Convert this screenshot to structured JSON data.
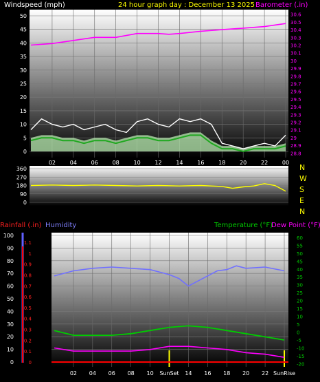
{
  "header": {
    "left_label": "Windspeed (mph)",
    "title": "24 hour graph day : December 13 2025",
    "right_label": "Barometer (.in)"
  },
  "colors": {
    "background": "#000000",
    "wind_gust": "#ffffff",
    "wind_avg": "#1fa81f",
    "wind_band": "#b8ecb0",
    "barometer": "#ff00ff",
    "direction": "#ffff00",
    "rain": "#ff0000",
    "humidity": "#7070ff",
    "temperature": "#00cc00",
    "dewpoint": "#ff00ff",
    "sun_marker": "#ffff00"
  },
  "x_ticks": [
    "02",
    "04",
    "06",
    "08",
    "10",
    "12",
    "14",
    "16",
    "18",
    "20",
    "22",
    "00"
  ],
  "bottom_x_ticks": [
    "02",
    "04",
    "06",
    "08",
    "10",
    "SunSet",
    "14",
    "16",
    "18",
    "20",
    "22",
    "SunRise"
  ],
  "direction_letters": [
    "N",
    "W",
    "S",
    "E",
    "N"
  ],
  "bottom_labels": {
    "rainfall": "Rainfall (.in)",
    "humidity": "Humidity",
    "temperature": "Temperature (°F)",
    "dewpoint": "Dew Point (°F)"
  },
  "chart_data": [
    {
      "type": "line",
      "title": "24 hour graph day : December 13 2025",
      "x_hours": [
        0,
        24
      ],
      "y_left_label": "Windspeed (mph)",
      "y_left_ticks": [
        "0",
        "5",
        "10",
        "15",
        "20",
        "25",
        "30",
        "35",
        "40",
        "45",
        "50"
      ],
      "y_left_lim": [
        0,
        50
      ],
      "y_right_label": "Barometer (.in)",
      "y_right_ticks": [
        "28.8",
        "28.9",
        "29",
        "29.1",
        "29.2",
        "29.3",
        "29.4",
        "29.5",
        "29.6",
        "29.7",
        "29.8",
        "29.9",
        "30",
        "30.1",
        "30.2",
        "30.3",
        "30.4",
        "30.5",
        "30.6"
      ],
      "y_right_lim": [
        28.74,
        30.66
      ],
      "series": [
        {
          "name": "Barometer (.in)",
          "axis": "right",
          "x": [
            0,
            2,
            4,
            6,
            8,
            10,
            12,
            13,
            14,
            16,
            18,
            20,
            22,
            24
          ],
          "values": [
            30.2,
            30.22,
            30.26,
            30.3,
            30.3,
            30.35,
            30.35,
            30.34,
            30.35,
            30.38,
            30.4,
            30.42,
            30.44,
            30.48
          ]
        },
        {
          "name": "Wind gust",
          "axis": "left",
          "x": [
            0,
            1,
            2,
            3,
            4,
            5,
            6,
            7,
            8,
            9,
            10,
            11,
            12,
            13,
            14,
            15,
            16,
            17,
            18,
            19,
            20,
            21,
            22,
            23,
            24
          ],
          "values": [
            8,
            12,
            10,
            9,
            10,
            8,
            9,
            10,
            8,
            7,
            11,
            12,
            10,
            9,
            12,
            11,
            12,
            10,
            3,
            2,
            1,
            2,
            3,
            2,
            6
          ]
        },
        {
          "name": "Wind speed",
          "axis": "left",
          "x": [
            0,
            1,
            2,
            3,
            4,
            5,
            6,
            7,
            8,
            9,
            10,
            11,
            12,
            13,
            14,
            15,
            16,
            17,
            18,
            19,
            20,
            21,
            22,
            23,
            24
          ],
          "values": [
            4,
            5,
            5,
            4,
            4,
            3,
            4,
            4,
            3,
            4,
            5,
            5,
            4,
            4,
            5,
            6,
            6,
            3,
            1,
            1,
            0,
            1,
            1,
            1,
            2
          ]
        }
      ]
    },
    {
      "type": "scatter",
      "title": "",
      "y_ticks": [
        "0",
        "90",
        "180",
        "270",
        "360"
      ],
      "y_lim": [
        0,
        360
      ],
      "series": [
        {
          "name": "Wind direction",
          "x": [
            0,
            2,
            4,
            6,
            8,
            10,
            12,
            14,
            16,
            18,
            19,
            20,
            21,
            22,
            23,
            24
          ],
          "values": [
            180,
            185,
            180,
            185,
            180,
            175,
            180,
            175,
            180,
            170,
            150,
            165,
            175,
            200,
            180,
            120
          ]
        }
      ]
    },
    {
      "type": "line",
      "title": "",
      "y_hum_ticks": [
        "0",
        "10",
        "20",
        "30",
        "40",
        "50",
        "60",
        "70",
        "80",
        "90",
        "100"
      ],
      "y_hum_lim": [
        0,
        100
      ],
      "y_rain_ticks": [
        "0",
        "0.1",
        "0.2",
        "0.3",
        "0.4",
        "0.5",
        "0.6",
        "0.7",
        "0.8",
        "0.9",
        "1",
        "1.1"
      ],
      "y_rain_lim": [
        0,
        1.1
      ],
      "y_temp_ticks": [
        "-20",
        "-15",
        "-10",
        "-5",
        "0",
        "5",
        "10",
        "15",
        "20",
        "25",
        "30",
        "35",
        "40",
        "45",
        "50",
        "55",
        "60"
      ],
      "y_temp_lim": [
        -22,
        63
      ],
      "series": [
        {
          "name": "Humidity",
          "axis": "humidity",
          "x": [
            0,
            2,
            4,
            6,
            8,
            10,
            12,
            13,
            14,
            15,
            16,
            17,
            18,
            19,
            20,
            22,
            24
          ],
          "values": [
            68,
            72,
            74,
            75,
            74,
            73,
            69,
            66,
            60,
            64,
            68,
            72,
            73,
            76,
            74,
            75,
            72
          ]
        },
        {
          "name": "Temperature (°F)",
          "axis": "temp",
          "x": [
            0,
            2,
            4,
            6,
            8,
            10,
            12,
            14,
            16,
            18,
            20,
            22,
            24
          ],
          "values": [
            1,
            -2,
            -2,
            -2,
            -1,
            1,
            3,
            4,
            3,
            1,
            -1,
            -3,
            -5
          ]
        },
        {
          "name": "Dew Point (°F)",
          "axis": "temp",
          "x": [
            0,
            2,
            4,
            6,
            8,
            10,
            12,
            14,
            16,
            18,
            20,
            22,
            24
          ],
          "values": [
            -10,
            -12,
            -12,
            -12,
            -12,
            -11,
            -9,
            -9,
            -10,
            -11,
            -13,
            -14,
            -16
          ]
        },
        {
          "name": "Rainfall (.in)",
          "axis": "rain",
          "x": [
            0,
            24
          ],
          "values": [
            0,
            0
          ]
        }
      ]
    }
  ]
}
